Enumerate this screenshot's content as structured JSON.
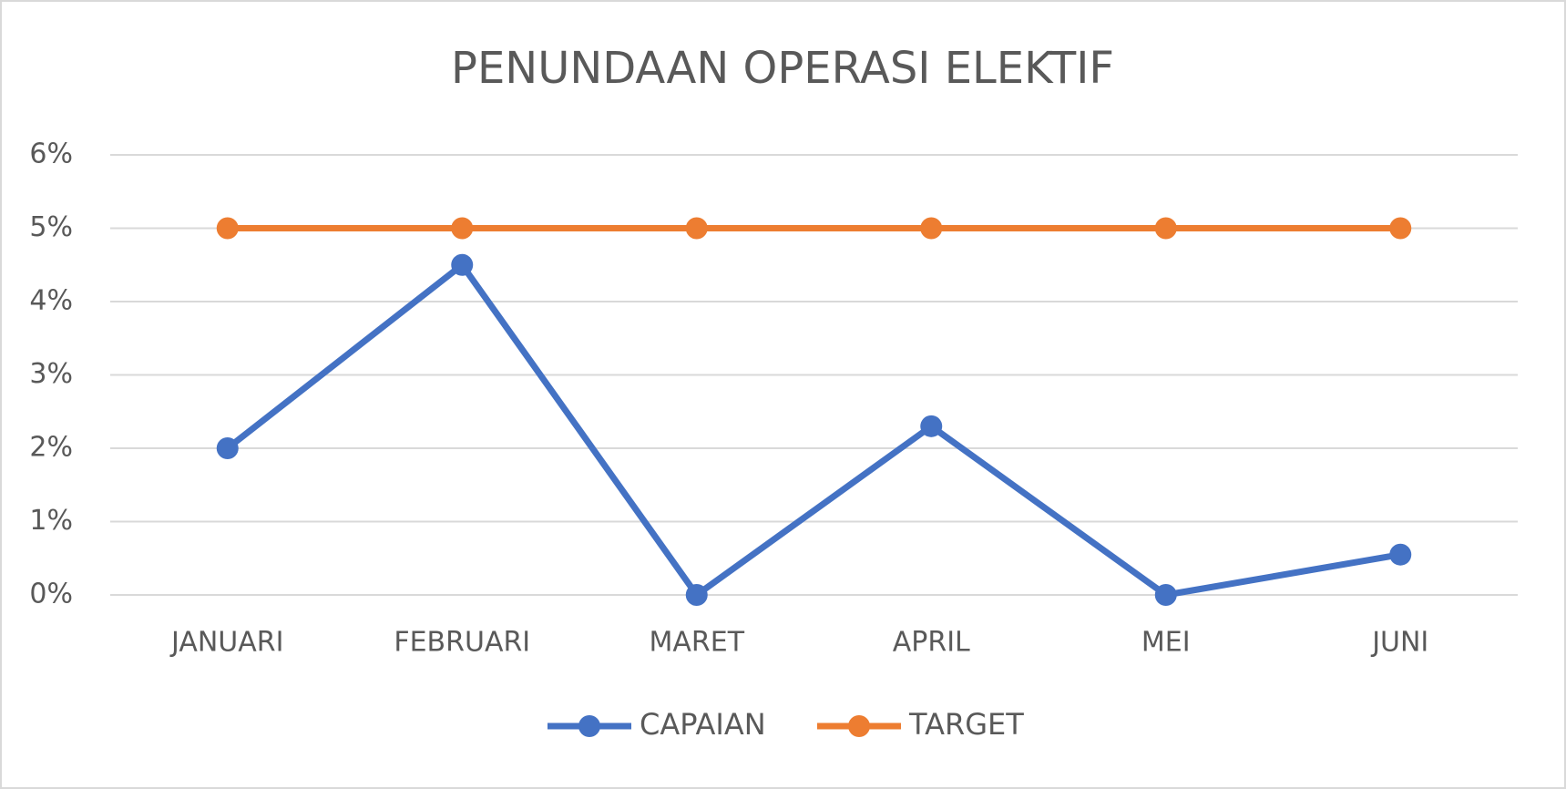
{
  "chart_data": {
    "type": "line",
    "title": "PENUNDAAN OPERASI ELEKTIF",
    "categories": [
      "JANUARI",
      "FEBRUARI",
      "MARET",
      "APRIL",
      "MEI",
      "JUNI"
    ],
    "series": [
      {
        "name": "CAPAIAN",
        "color": "#4472c4",
        "values": [
          2,
          4.5,
          0,
          2.3,
          0,
          0.55
        ]
      },
      {
        "name": "TARGET",
        "color": "#ed7d31",
        "values": [
          5,
          5,
          5,
          5,
          5,
          5
        ]
      }
    ],
    "ylim": [
      0,
      6
    ],
    "yticks": [
      {
        "value": 0,
        "label": "0%"
      },
      {
        "value": 1,
        "label": "1%"
      },
      {
        "value": 2,
        "label": "2%"
      },
      {
        "value": 3,
        "label": "3%"
      },
      {
        "value": 4,
        "label": "4%"
      },
      {
        "value": 5,
        "label": "5%"
      },
      {
        "value": 6,
        "label": "6%"
      }
    ],
    "grid": true,
    "legend": "bottom"
  }
}
